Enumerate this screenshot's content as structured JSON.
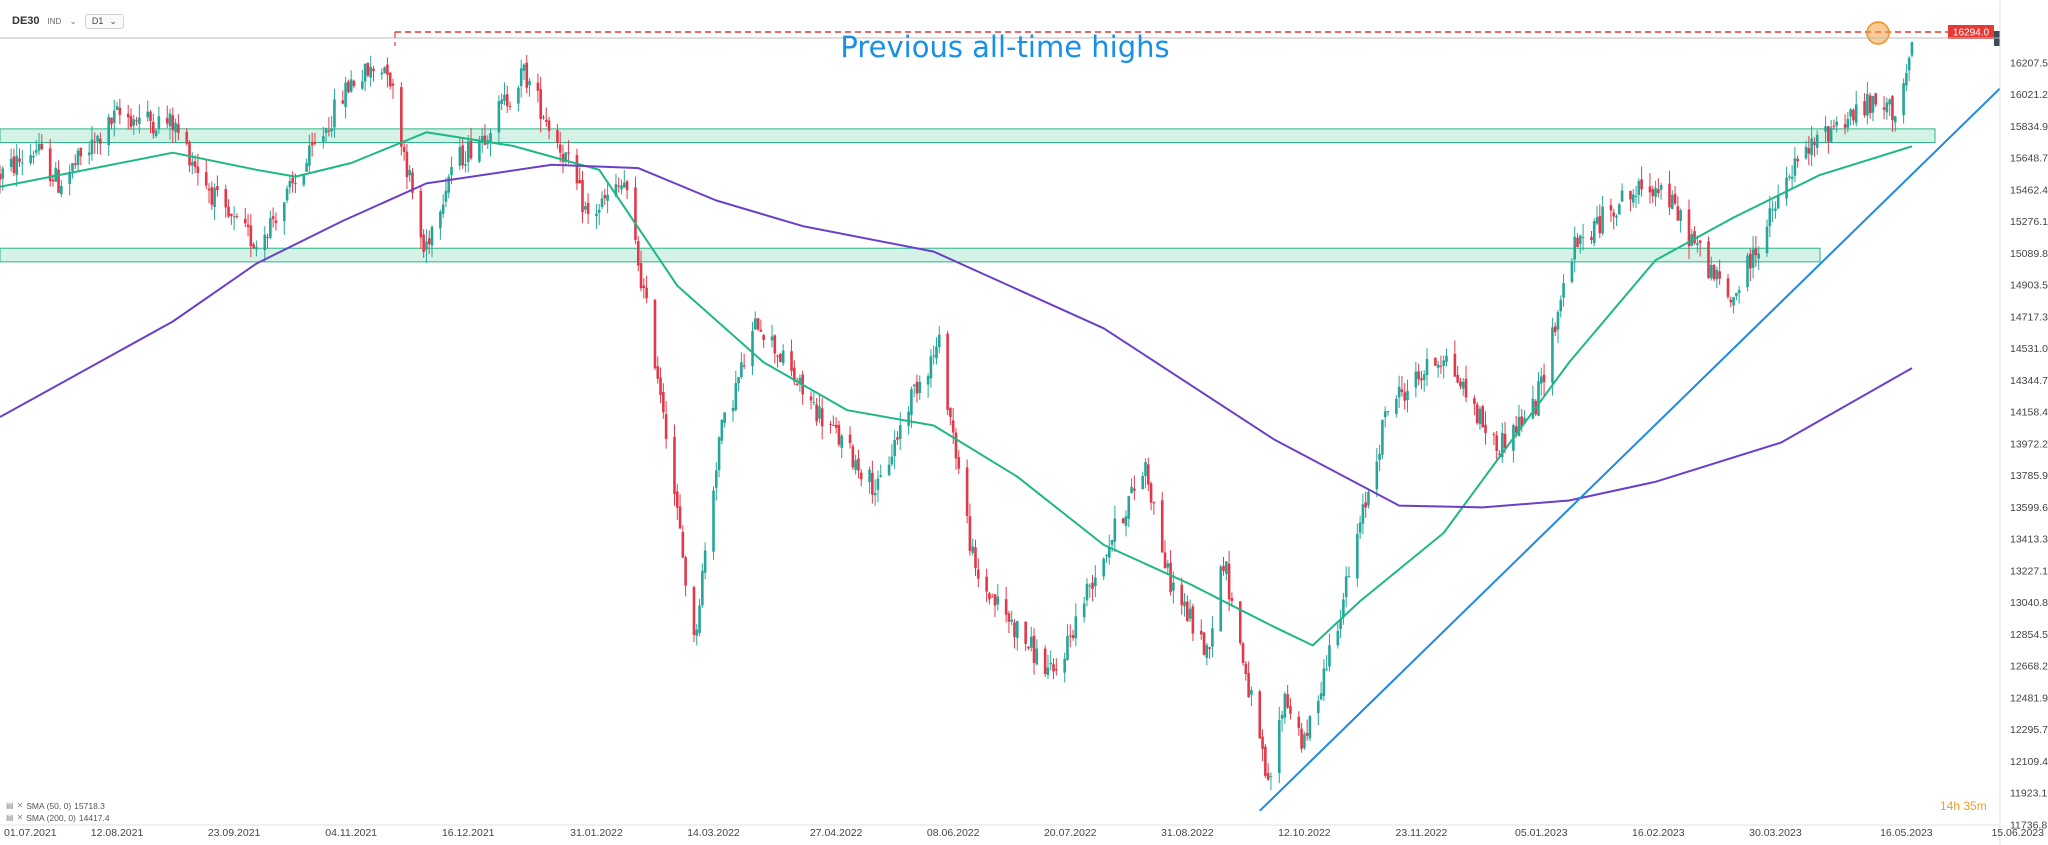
{
  "header": {
    "symbol": "DE30",
    "market_tag": "IND",
    "timeframe": "D1"
  },
  "legend": [
    {
      "label": "SMA (50, 0)",
      "value": "15718.3"
    },
    {
      "label": "SMA (200, 0)",
      "value": "14417.4"
    }
  ],
  "timer": "14h 35m",
  "colors": {
    "bull": "#26a69a",
    "bear": "#e03a4a",
    "sma50": "#1db886",
    "sma200": "#6a3fc9",
    "trendline": "#1e88e5",
    "zone_fill": "#c9f0e0",
    "zone_border": "#2bb586",
    "ath_line": "#e53935",
    "annotation": "#1a8fe6"
  },
  "chart_data": {
    "type": "candlestick",
    "title": "",
    "annotation": "Previous all-time highs",
    "y_range": [
      11736.8,
      16400
    ],
    "y_ticks": [
      "16207.5",
      "16021.2",
      "15834.9",
      "15648.7",
      "15462.4",
      "15276.1",
      "15089.8",
      "14903.5",
      "14717.3",
      "14531.0",
      "14344.7",
      "14158.4",
      "13972.2",
      "13785.9",
      "13599.6",
      "13413.3",
      "13227.1",
      "13040.8",
      "12854.5",
      "12668.2",
      "12481.9",
      "12295.7",
      "12109.4",
      "11923.1",
      "11736.8"
    ],
    "x_range": [
      "01.07.2021",
      "15.06.2023"
    ],
    "x_ticks": [
      "01.07.2021",
      "12.08.2021",
      "23.09.2021",
      "04.11.2021",
      "16.12.2021",
      "31.01.2022",
      "14.03.2022",
      "27.04.2022",
      "08.06.2022",
      "20.07.2022",
      "31.08.2022",
      "12.10.2022",
      "23.11.2022",
      "05.01.2023",
      "16.02.2023",
      "30.03.2023",
      "16.05.2023",
      "15.06.2023"
    ],
    "last_price": "16261.2",
    "ath_level": "16294.0",
    "price_path": [
      [
        "01.07.2021",
        15550
      ],
      [
        "14.07.2021",
        15700
      ],
      [
        "22.07.2021",
        15500
      ],
      [
        "05.08.2021",
        15750
      ],
      [
        "12.08.2021",
        15900
      ],
      [
        "01.09.2021",
        15850
      ],
      [
        "20.09.2021",
        15300
      ],
      [
        "01.10.2021",
        15150
      ],
      [
        "15.10.2021",
        15500
      ],
      [
        "04.11.2021",
        16100
      ],
      [
        "17.11.2021",
        16200
      ],
      [
        "30.11.2021",
        15100
      ],
      [
        "10.12.2021",
        15600
      ],
      [
        "22.12.2021",
        15800
      ],
      [
        "05.01.2022",
        16150
      ],
      [
        "20.01.2022",
        15650
      ],
      [
        "28.01.2022",
        15300
      ],
      [
        "10.02.2022",
        15500
      ],
      [
        "24.02.2022",
        14200
      ],
      [
        "07.03.2022",
        12800
      ],
      [
        "16.03.2022",
        14000
      ],
      [
        "30.03.2022",
        14700
      ],
      [
        "14.04.2022",
        14300
      ],
      [
        "28.04.2022",
        14000
      ],
      [
        "12.05.2022",
        13700
      ],
      [
        "25.05.2022",
        14300
      ],
      [
        "03.06.2022",
        14550
      ],
      [
        "16.06.2022",
        13200
      ],
      [
        "30.06.2022",
        12900
      ],
      [
        "14.07.2022",
        12600
      ],
      [
        "27.07.2022",
        13150
      ],
      [
        "16.08.2022",
        13850
      ],
      [
        "24.08.2022",
        13200
      ],
      [
        "07.09.2022",
        12750
      ],
      [
        "13.09.2022",
        13300
      ],
      [
        "29.09.2022",
        11950
      ],
      [
        "05.10.2022",
        12500
      ],
      [
        "12.10.2022",
        12200
      ],
      [
        "28.10.2022",
        13200
      ],
      [
        "11.11.2022",
        14200
      ],
      [
        "01.12.2022",
        14500
      ],
      [
        "20.12.2022",
        13950
      ],
      [
        "03.01.2023",
        14200
      ],
      [
        "16.01.2023",
        15100
      ],
      [
        "02.02.2023",
        15400
      ],
      [
        "16.02.2023",
        15500
      ],
      [
        "14.03.2023",
        14800
      ],
      [
        "24.03.2023",
        15150
      ],
      [
        "06.04.2023",
        15600
      ],
      [
        "20.04.2023",
        15850
      ],
      [
        "02.05.2023",
        15950
      ],
      [
        "12.05.2023",
        15930
      ],
      [
        "18.05.2023",
        16261
      ]
    ],
    "series": [
      {
        "name": "SMA (50, 0)",
        "points": [
          [
            "01.07.2021",
            15480
          ],
          [
            "01.09.2021",
            15680
          ],
          [
            "01.10.2021",
            15580
          ],
          [
            "15.10.2021",
            15540
          ],
          [
            "04.11.2021",
            15620
          ],
          [
            "01.12.2021",
            15800
          ],
          [
            "01.01.2022",
            15720
          ],
          [
            "01.02.2022",
            15580
          ],
          [
            "01.03.2022",
            14900
          ],
          [
            "01.04.2022",
            14450
          ],
          [
            "01.05.2022",
            14170
          ],
          [
            "01.06.2022",
            14080
          ],
          [
            "01.07.2022",
            13780
          ],
          [
            "01.08.2022",
            13380
          ],
          [
            "01.09.2022",
            13150
          ],
          [
            "01.10.2022",
            12900
          ],
          [
            "15.10.2022",
            12790
          ],
          [
            "01.11.2022",
            13050
          ],
          [
            "01.12.2022",
            13450
          ],
          [
            "15.01.2023",
            14450
          ],
          [
            "15.02.2023",
            15050
          ],
          [
            "15.03.2023",
            15300
          ],
          [
            "15.04.2023",
            15550
          ],
          [
            "18.05.2023",
            15718
          ]
        ]
      },
      {
        "name": "SMA (200, 0)",
        "points": [
          [
            "01.07.2021",
            14130
          ],
          [
            "01.09.2021",
            14690
          ],
          [
            "01.10.2021",
            15030
          ],
          [
            "01.11.2021",
            15280
          ],
          [
            "01.12.2021",
            15500
          ],
          [
            "15.01.2022",
            15610
          ],
          [
            "15.02.2022",
            15590
          ],
          [
            "15.03.2022",
            15400
          ],
          [
            "15.04.2022",
            15250
          ],
          [
            "01.06.2022",
            15100
          ],
          [
            "01.08.2022",
            14650
          ],
          [
            "01.10.2022",
            14000
          ],
          [
            "15.11.2022",
            13610
          ],
          [
            "15.12.2022",
            13600
          ],
          [
            "15.01.2023",
            13640
          ],
          [
            "15.02.2023",
            13750
          ],
          [
            "01.04.2023",
            13980
          ],
          [
            "18.05.2023",
            14417
          ]
        ]
      }
    ],
    "support_zones": [
      [
        15740,
        15820
      ],
      [
        15040,
        15120
      ]
    ],
    "trendline": [
      [
        "26.09.2022",
        11820
      ],
      [
        "20.06.2023",
        16080
      ]
    ]
  }
}
